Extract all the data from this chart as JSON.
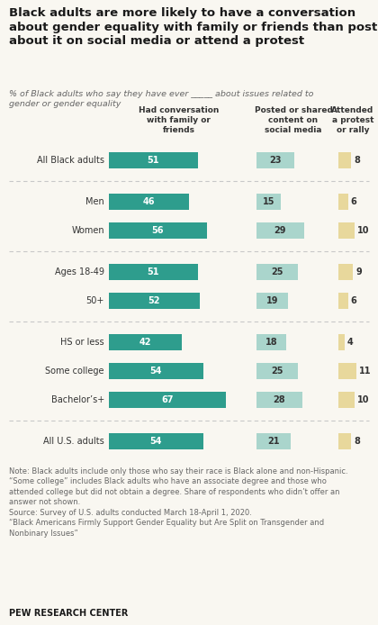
{
  "title": "Black adults are more likely to have a conversation\nabout gender equality with family or friends than post\nabout it on social media or attend a protest",
  "subtitle": "% of Black adults who say they have ever _____ about issues related to\ngender or gender equality",
  "col_headers": [
    "Had conversation\nwith family or\nfriends",
    "Posted or shared\ncontent on\nsocial media",
    "Attended\na protest\nor rally"
  ],
  "categories": [
    "All Black adults",
    "Men",
    "Women",
    "Ages 18-49",
    "50+",
    "HS or less",
    "Some college",
    "Bachelor’s+",
    "All U.S. adults"
  ],
  "col1_values": [
    51,
    46,
    56,
    51,
    52,
    42,
    54,
    67,
    54
  ],
  "col2_values": [
    23,
    15,
    29,
    25,
    19,
    18,
    25,
    28,
    21
  ],
  "col3_values": [
    8,
    6,
    10,
    9,
    6,
    4,
    11,
    10,
    8
  ],
  "col1_color": "#2e9d8d",
  "col2_color": "#aad5cc",
  "col3_color": "#e8d89c",
  "col1_max": 80,
  "col2_max": 45,
  "col3_max": 18,
  "groups": [
    [
      0
    ],
    [
      1,
      2
    ],
    [
      3,
      4
    ],
    [
      5,
      6,
      7
    ],
    [
      8
    ]
  ],
  "note": "Note: Black adults include only those who say their race is Black alone and non-Hispanic.\n“Some college” includes Black adults who have an associate degree and those who\nattended college but did not obtain a degree. Share of respondents who didn’t offer an\nanswer not shown.\nSource: Survey of U.S. adults conducted March 18-April 1, 2020.\n“Black Americans Firmly Support Gender Equality but Are Split on Transgender and\nNonbinary Issues”",
  "footer": "PEW RESEARCH CENTER",
  "background_color": "#f9f7f1",
  "text_color": "#333333",
  "separator_color": "#c8c8c8"
}
